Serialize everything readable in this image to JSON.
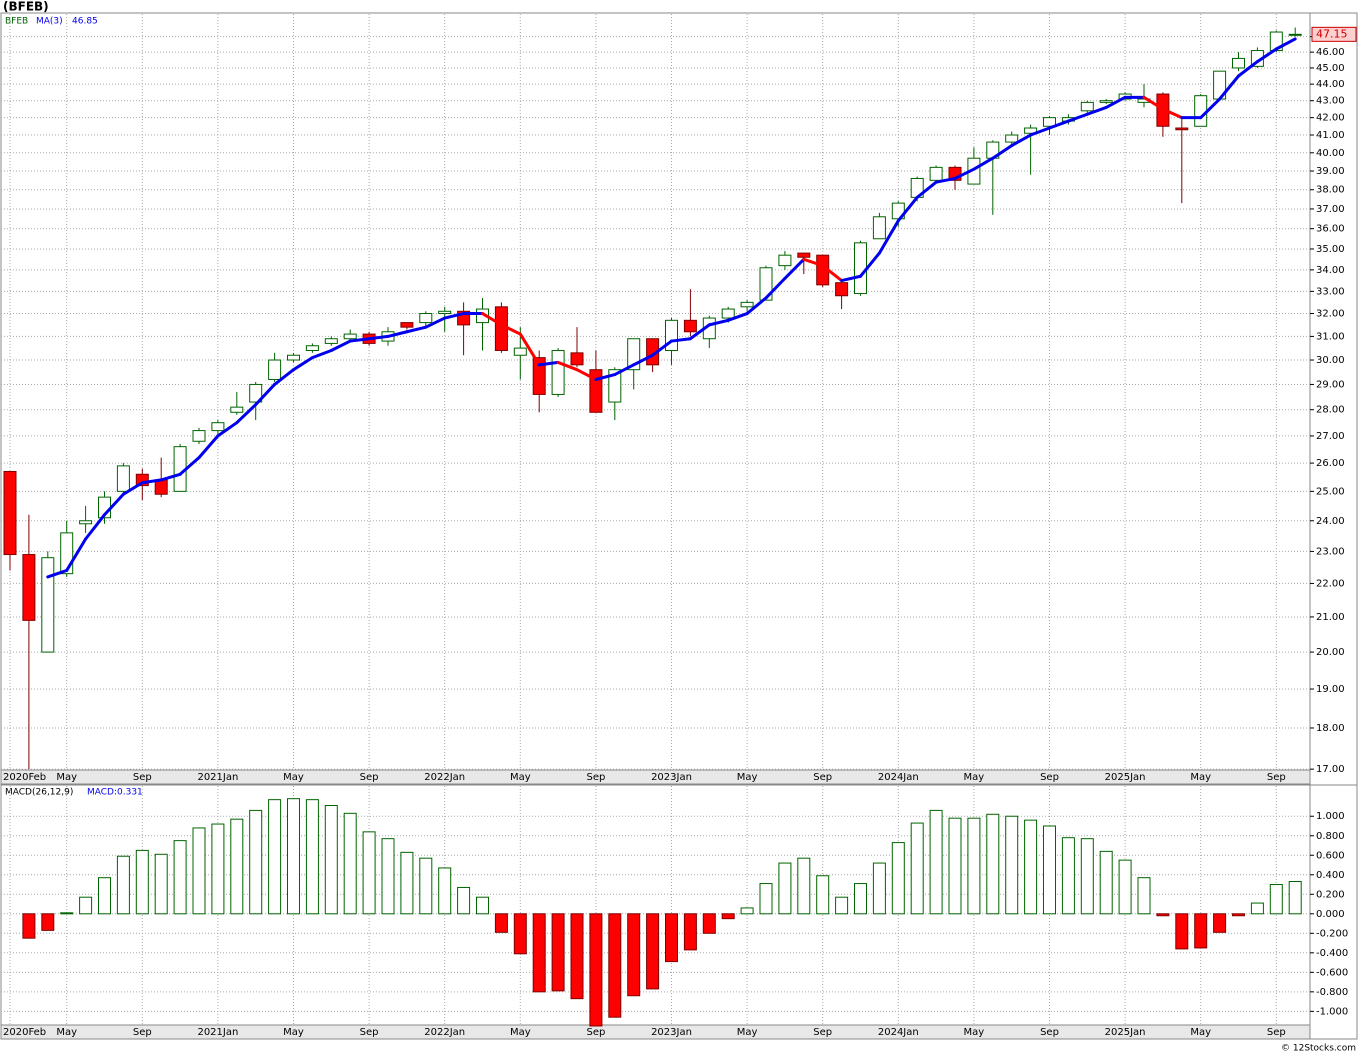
{
  "title": "(BFEB)",
  "footer": "© 12Stocks.com",
  "chart_data": [
    {
      "type": "candlestick",
      "log_scale": true,
      "grid": true,
      "categories": [
        "2020Feb",
        null,
        null,
        "May",
        null,
        null,
        null,
        "Sep",
        null,
        null,
        null,
        "2021Jan",
        null,
        null,
        null,
        "May",
        null,
        null,
        null,
        "Sep",
        null,
        null,
        null,
        "2022Jan",
        null,
        null,
        null,
        "May",
        null,
        null,
        null,
        "Sep",
        null,
        null,
        null,
        "2023Jan",
        null,
        null,
        null,
        "May",
        null,
        null,
        null,
        "Sep",
        null,
        null,
        null,
        "2024Jan",
        null,
        null,
        null,
        "May",
        null,
        null,
        null,
        "Sep",
        null,
        null,
        null,
        "2025Jan",
        null,
        null,
        null,
        "May",
        null,
        null,
        null,
        "Sep",
        null
      ],
      "name": "BFEB",
      "up_color": "#006400",
      "down_color": "#ff0000",
      "open": [
        25.7,
        22.9,
        20.0,
        22.3,
        23.9,
        24.1,
        25.0,
        25.6,
        25.4,
        25.0,
        26.8,
        27.2,
        27.9,
        28.3,
        29.2,
        30.0,
        30.4,
        30.7,
        30.9,
        31.1,
        30.8,
        31.6,
        31.6,
        32.0,
        32.1,
        31.6,
        32.3,
        30.2,
        30.1,
        28.6,
        30.3,
        29.6,
        28.3,
        29.6,
        30.9,
        30.4,
        31.7,
        30.9,
        31.8,
        32.3,
        32.6,
        34.2,
        34.8,
        34.7,
        33.4,
        32.9,
        35.5,
        36.5,
        37.6,
        38.5,
        39.2,
        38.3,
        39.7,
        40.6,
        41.1,
        41.5,
        41.8,
        42.4,
        42.9,
        43.1,
        42.9,
        43.4,
        41.4,
        41.5,
        43.1,
        45.0,
        45.1,
        46.1,
        47.15
      ],
      "high": [
        25.7,
        24.2,
        23.0,
        24.0,
        24.5,
        25.0,
        26.0,
        25.8,
        26.2,
        26.7,
        27.3,
        27.6,
        28.7,
        29.1,
        30.3,
        30.3,
        30.7,
        31.0,
        31.3,
        31.2,
        31.4,
        31.6,
        32.1,
        32.3,
        32.5,
        32.7,
        32.5,
        31.4,
        30.4,
        30.5,
        31.4,
        30.4,
        29.7,
        30.9,
        30.9,
        31.8,
        33.1,
        31.9,
        32.3,
        32.6,
        34.2,
        34.9,
        34.8,
        34.7,
        33.5,
        35.4,
        36.8,
        37.4,
        38.7,
        39.3,
        39.3,
        40.3,
        40.7,
        41.2,
        41.6,
        42.1,
        42.2,
        43.0,
        43.1,
        43.5,
        44.0,
        43.5,
        42.0,
        43.4,
        44.8,
        46.0,
        46.3,
        47.4,
        47.6
      ],
      "low": [
        22.4,
        17.0,
        20.0,
        22.2,
        23.6,
        23.9,
        24.9,
        24.7,
        24.8,
        25.0,
        26.7,
        26.9,
        27.8,
        27.6,
        29.1,
        29.9,
        30.3,
        30.6,
        30.8,
        30.6,
        30.6,
        31.3,
        31.4,
        31.2,
        30.2,
        30.4,
        30.3,
        29.2,
        27.9,
        28.5,
        29.7,
        27.9,
        27.6,
        28.8,
        29.5,
        29.8,
        31.0,
        30.5,
        31.6,
        32.1,
        32.6,
        34.0,
        33.8,
        33.2,
        32.2,
        32.8,
        35.5,
        36.1,
        37.4,
        38.5,
        38.0,
        38.3,
        36.7,
        40.4,
        38.8,
        41.0,
        41.6,
        42.3,
        42.8,
        43.0,
        42.6,
        40.9,
        37.3,
        41.5,
        43.0,
        44.8,
        45.0,
        46.0,
        47.0
      ],
      "close": [
        22.9,
        20.9,
        22.8,
        23.6,
        24.0,
        24.8,
        25.9,
        25.2,
        24.9,
        26.6,
        27.2,
        27.5,
        28.1,
        29.0,
        30.0,
        30.2,
        30.6,
        30.9,
        31.1,
        30.7,
        31.2,
        31.4,
        32.0,
        32.1,
        31.5,
        32.2,
        30.4,
        30.5,
        28.6,
        30.4,
        29.8,
        27.9,
        29.6,
        30.9,
        29.8,
        31.7,
        31.2,
        31.8,
        32.2,
        32.5,
        34.1,
        34.7,
        34.6,
        33.3,
        32.8,
        35.3,
        36.6,
        37.3,
        38.6,
        39.2,
        38.5,
        39.7,
        40.6,
        41.0,
        41.4,
        42.0,
        42.0,
        42.9,
        43.0,
        43.4,
        43.1,
        41.5,
        41.3,
        43.3,
        44.8,
        45.6,
        46.1,
        47.3,
        47.15
      ],
      "series": [
        {
          "name": "MA(3)",
          "color": "#0000ee",
          "down_color": "#ff0000",
          "values": [
            null,
            null,
            22.2,
            22.4,
            23.4,
            24.2,
            24.9,
            25.3,
            25.4,
            25.6,
            26.2,
            27.0,
            27.5,
            28.2,
            29.0,
            29.6,
            30.1,
            30.4,
            30.8,
            30.9,
            31.0,
            31.2,
            31.4,
            31.8,
            32.0,
            32.0,
            31.5,
            31.1,
            29.8,
            29.9,
            29.6,
            29.2,
            29.4,
            29.8,
            30.2,
            30.8,
            30.9,
            31.5,
            31.7,
            32.0,
            32.7,
            33.6,
            34.5,
            34.2,
            33.5,
            33.7,
            34.8,
            36.4,
            37.6,
            38.4,
            38.6,
            39.1,
            39.7,
            40.4,
            41.0,
            41.4,
            41.8,
            42.2,
            42.6,
            43.2,
            43.2,
            42.5,
            42.0,
            42.0,
            43.1,
            44.5,
            45.4,
            46.2,
            46.85
          ]
        }
      ],
      "ylim": [
        16.98,
        48.5
      ],
      "yticks": [
        {
          "value": 17,
          "label": "17.00"
        },
        {
          "value": 18,
          "label": "18.00"
        },
        {
          "value": 19,
          "label": "19.00"
        },
        {
          "value": 20,
          "label": "20.00"
        },
        {
          "value": 21,
          "label": "21.00"
        },
        {
          "value": 22,
          "label": "22.00"
        },
        {
          "value": 23,
          "label": "23.00"
        },
        {
          "value": 24,
          "label": "24.00"
        },
        {
          "value": 25,
          "label": "25.00"
        },
        {
          "value": 26,
          "label": "26.00"
        },
        {
          "value": 27,
          "label": "27.00"
        },
        {
          "value": 28,
          "label": "28.00"
        },
        {
          "value": 29,
          "label": "29.00"
        },
        {
          "value": 30,
          "label": "30.00"
        },
        {
          "value": 31,
          "label": "31.00"
        },
        {
          "value": 32,
          "label": "32.00"
        },
        {
          "value": 33,
          "label": "33.00"
        },
        {
          "value": 34,
          "label": "34.00"
        },
        {
          "value": 35,
          "label": "35.00"
        },
        {
          "value": 36,
          "label": "36.00"
        },
        {
          "value": 37,
          "label": "37.00"
        },
        {
          "value": 38,
          "label": "38.00"
        },
        {
          "value": 39,
          "label": "39.00"
        },
        {
          "value": 40,
          "label": "40.00"
        },
        {
          "value": 41,
          "label": "41.00"
        },
        {
          "value": 42,
          "label": "42.00"
        },
        {
          "value": 43,
          "label": "43.00"
        },
        {
          "value": 44,
          "label": "44.00"
        },
        {
          "value": 45,
          "label": "45.00"
        },
        {
          "value": 46,
          "label": "46.00"
        },
        {
          "value": 47,
          "label": "47.00"
        }
      ]
    },
    {
      "type": "bar",
      "grid": true,
      "indicator": "MACD(26,12,9)",
      "legend": "MACD:0.331",
      "up_color": "#006400",
      "down_color": "#ff0000",
      "legend_color": "#0000ee",
      "values": [
        null,
        -0.25,
        -0.17,
        0.01,
        0.17,
        0.37,
        0.59,
        0.65,
        0.61,
        0.75,
        0.88,
        0.92,
        0.97,
        1.06,
        1.17,
        1.18,
        1.17,
        1.11,
        1.03,
        0.84,
        0.77,
        0.63,
        0.57,
        0.47,
        0.27,
        0.17,
        -0.19,
        -0.41,
        -0.8,
        -0.79,
        -0.87,
        -1.15,
        -1.06,
        -0.84,
        -0.77,
        -0.49,
        -0.37,
        -0.2,
        -0.05,
        0.06,
        0.31,
        0.52,
        0.57,
        0.39,
        0.17,
        0.31,
        0.52,
        0.73,
        0.93,
        1.06,
        0.98,
        0.98,
        1.02,
        1.0,
        0.96,
        0.9,
        0.78,
        0.77,
        0.64,
        0.55,
        0.37,
        -0.02,
        -0.36,
        -0.35,
        -0.19,
        -0.02,
        0.11,
        0.3,
        0.331
      ],
      "ylim": [
        -1.14,
        1.31
      ],
      "yticks": [
        {
          "value": -1,
          "label": "-1.000"
        },
        {
          "value": -0.8,
          "label": "-0.800"
        },
        {
          "value": -0.6,
          "label": "-0.600"
        },
        {
          "value": -0.4,
          "label": "-0.400"
        },
        {
          "value": -0.2,
          "label": "-0.200"
        },
        {
          "value": 0,
          "label": "0.000"
        },
        {
          "value": 0.2,
          "label": "0.200"
        },
        {
          "value": 0.4,
          "label": "0.400"
        },
        {
          "value": 0.6,
          "label": "0.600"
        },
        {
          "value": 0.8,
          "label": "0.800"
        },
        {
          "value": 1,
          "label": "1.000"
        }
      ]
    }
  ]
}
